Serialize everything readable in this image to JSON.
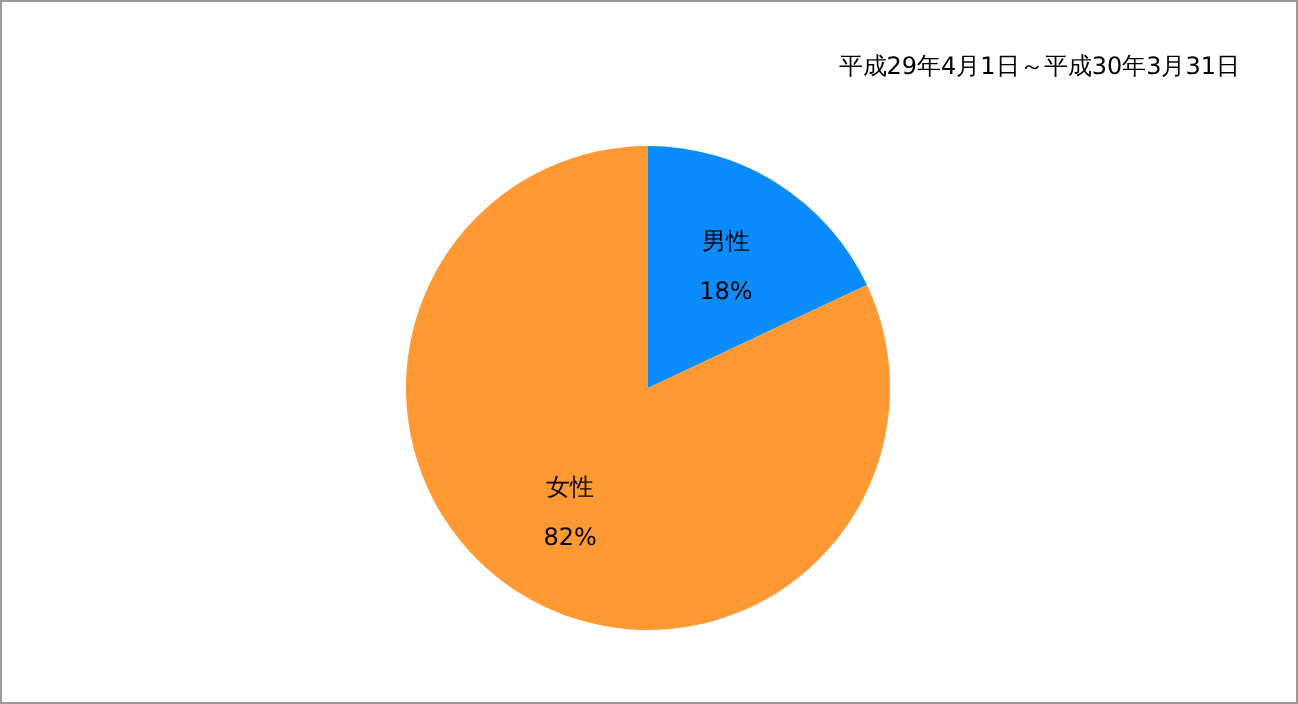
{
  "chart_data": {
    "type": "pie",
    "title": "平成29年4月1日～平成30年3月31日",
    "categories": [
      "男性",
      "女性"
    ],
    "values": [
      18,
      82
    ],
    "value_labels": [
      "18%",
      "82%"
    ],
    "colors": [
      "#0a8cff",
      "#ff9933"
    ]
  }
}
